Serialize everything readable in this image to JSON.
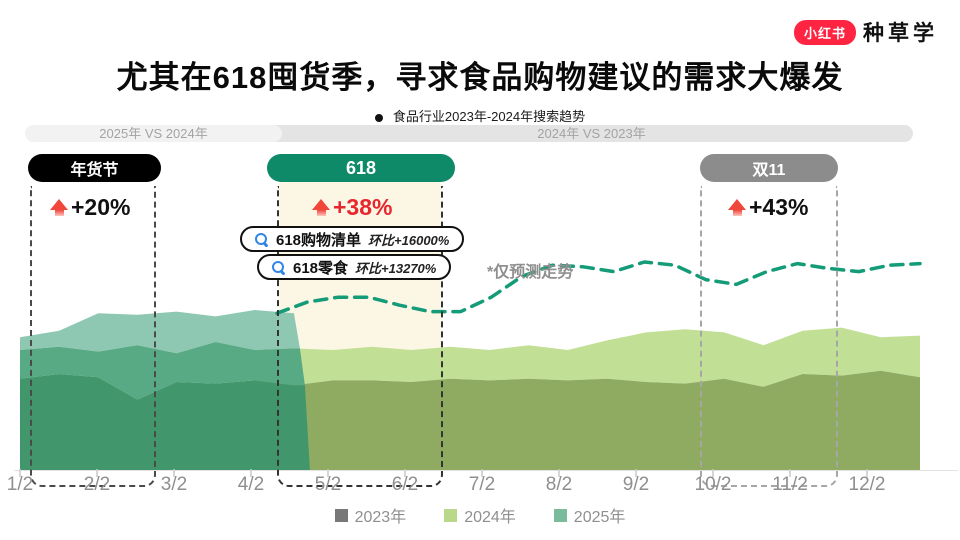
{
  "brand": {
    "badge": "小红书",
    "name": "种草学",
    "badge_color": "#ff2442"
  },
  "title": "尤其在618囤货季，寻求食品购物建议的需求大爆发",
  "subtitle": "食品行业2023年-2024年搜索趋势",
  "comparison_bands": {
    "left": "2025年 VS 2024年",
    "right": "2024年 VS 2023年"
  },
  "events": [
    {
      "label": "年货节",
      "change": "+20%",
      "pill_color": "#000000",
      "change_color": "#111111"
    },
    {
      "label": "618",
      "change": "+38%",
      "pill_color": "#0e8a69",
      "change_color": "#e8262d"
    },
    {
      "label": "双11",
      "change": "+43%",
      "pill_color": "#8c8c8c",
      "change_color": "#111111"
    }
  ],
  "callouts": [
    {
      "keyword": "618购物清单",
      "metric": "环比+16000%"
    },
    {
      "keyword": "618零食",
      "metric": "环比+13270%"
    }
  ],
  "forecast_note": "*仅预测走势",
  "chart_data": {
    "type": "area",
    "title": "食品行业2023年-2024年搜索趋势",
    "x_labels": [
      "1/2",
      "2/2",
      "3/2",
      "4/2",
      "5/2",
      "6/2",
      "7/2",
      "8/2",
      "9/2",
      "10/2",
      "11/2",
      "12/2"
    ],
    "highlight_color": "#fcf7e4",
    "series": [
      {
        "name": "2023年",
        "color": "#8fab62",
        "band_color_left": "#41966b",
        "legend_color": "#787878",
        "values": [
          57,
          60,
          58,
          44,
          55,
          54,
          56,
          53,
          56,
          56,
          55,
          57,
          56,
          57,
          56,
          57,
          55,
          54,
          57,
          52,
          60,
          59,
          62,
          58
        ]
      },
      {
        "name": "2024年",
        "color": "#c2df96",
        "band_color_left": "#58aa84",
        "legend_color": "#b9d88a",
        "values": [
          75,
          77,
          74,
          78,
          73,
          80,
          75,
          76,
          75,
          77,
          75,
          77,
          75,
          78,
          75,
          81,
          86,
          88,
          86,
          78,
          87,
          89,
          83,
          84
        ]
      },
      {
        "name": "2025年",
        "color": "#8ec8b3",
        "legend_color": "#79bb9a",
        "values": [
          83,
          87,
          98,
          97,
          99,
          96,
          100,
          98
        ]
      }
    ],
    "forecast": {
      "name": "仅预测走势",
      "color": "#149b77",
      "x_start": 277,
      "values": [
        98,
        105,
        108,
        108,
        103,
        99,
        99,
        108,
        121,
        128,
        127,
        124,
        130,
        128,
        119,
        116,
        124,
        129,
        126,
        124,
        128,
        129
      ]
    }
  }
}
